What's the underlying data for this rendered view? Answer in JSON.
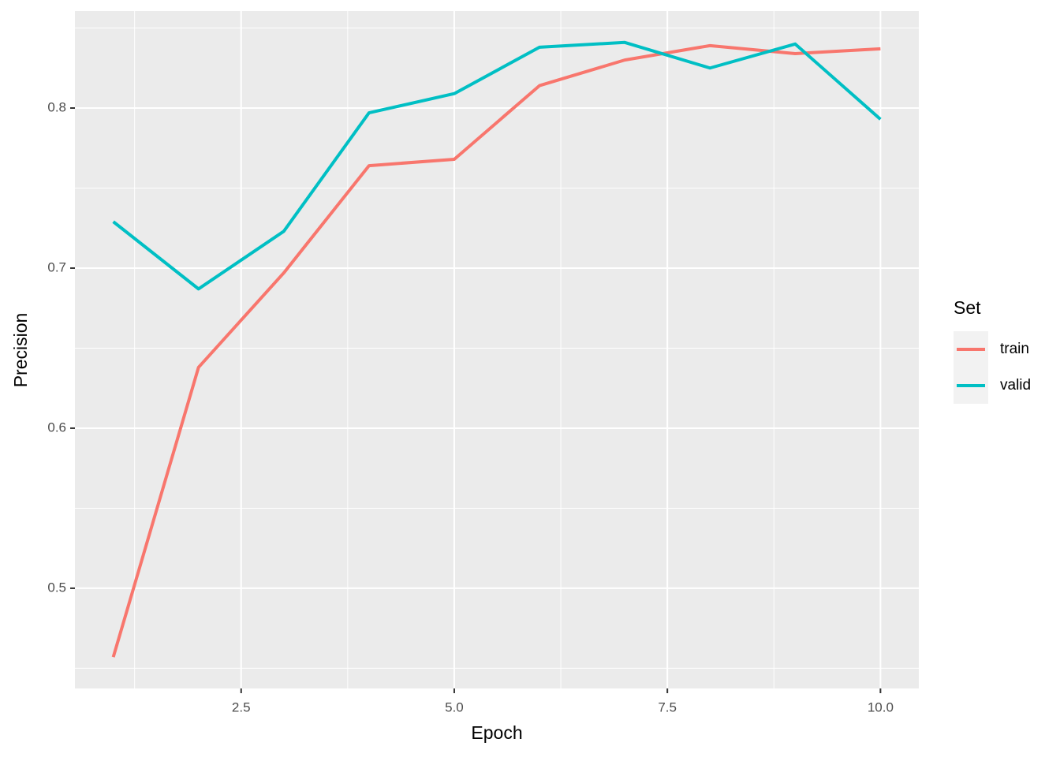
{
  "chart_data": {
    "type": "line",
    "x_label": "Epoch",
    "y_label": "Precision",
    "x": [
      1,
      2,
      3,
      4,
      5,
      6,
      7,
      8,
      9,
      10
    ],
    "series": [
      {
        "name": "train",
        "color": "#F8766D",
        "values": [
          0.457,
          0.638,
          0.697,
          0.764,
          0.768,
          0.814,
          0.83,
          0.839,
          0.834,
          0.837
        ]
      },
      {
        "name": "valid",
        "color": "#00BFC4",
        "values": [
          0.729,
          0.687,
          0.723,
          0.797,
          0.809,
          0.838,
          0.841,
          0.825,
          0.84,
          0.793
        ]
      }
    ],
    "xlim": [
      0.55,
      10.45
    ],
    "ylim": [
      0.4374,
      0.8606
    ],
    "xticks": [
      2.5,
      {
        "value": 5,
        "label": "5.0"
      },
      {
        "value": 7.5,
        "label": "7.5"
      },
      {
        "value": 10,
        "label": "10.0"
      }
    ],
    "yticks": [
      0.5,
      0.6,
      0.7,
      0.8
    ],
    "xminor": [
      1.25,
      3.75,
      6.25,
      8.75
    ],
    "yminor": [
      0.45,
      0.55,
      0.65,
      0.75,
      0.85
    ],
    "grid": true,
    "legend_title": "Set",
    "legend_position": "right"
  }
}
